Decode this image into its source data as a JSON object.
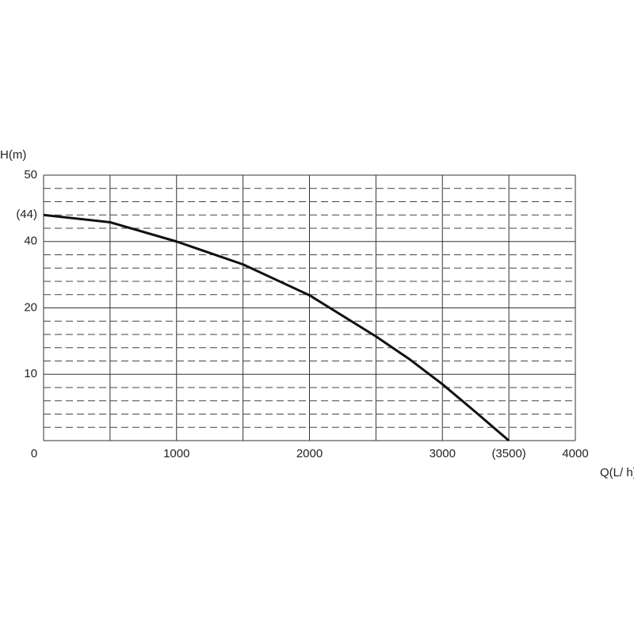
{
  "chart_data": {
    "type": "line",
    "y_label": "H(m)",
    "x_label": "Q(L/ h)",
    "x": [
      0,
      500,
      1000,
      1500,
      2000,
      2500,
      2750,
      3000,
      3250,
      3500
    ],
    "series": [
      {
        "color": "#111111",
        "values": [
          44,
          42.9,
          40,
          33.1,
          23.8,
          15.7,
          12.3,
          8.5,
          4.3,
          0
        ]
      }
    ],
    "xlim": [
      0,
      4000
    ],
    "xticks": [
      0,
      1000,
      2000,
      3000,
      {
        "value": 3500,
        "label": "(3500)"
      },
      4000
    ],
    "xgrid": [
      0,
      500,
      1000,
      1500,
      2000,
      2500,
      3000,
      3500,
      4000
    ],
    "ylim": [
      0,
      50
    ],
    "yticks": [
      10,
      20,
      40,
      {
        "value": 44,
        "label": "(44)"
      },
      50
    ],
    "grid": true
  }
}
